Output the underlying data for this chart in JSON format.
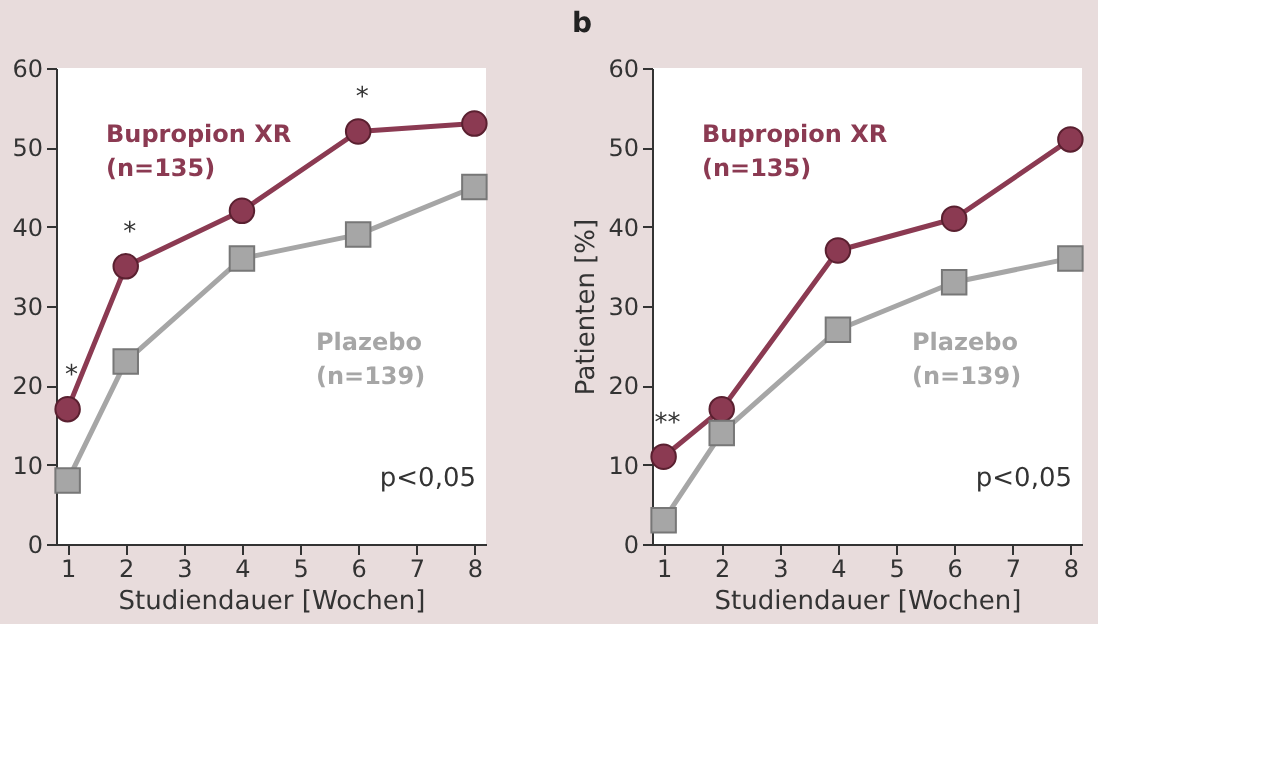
{
  "chart_data": [
    {
      "type": "line",
      "x": [
        1,
        2,
        4,
        6,
        8
      ],
      "xlabel": "Studiendauer [Wochen]",
      "xlim": [
        0.8,
        8.2
      ],
      "xticks": [
        1,
        2,
        3,
        4,
        5,
        6,
        7,
        8
      ],
      "ylim": [
        0,
        60
      ],
      "yticks": [
        0,
        10,
        20,
        30,
        40,
        50,
        60
      ],
      "grid": false,
      "legend": false,
      "series": [
        {
          "name": "Bupropion XR\n(n=135)",
          "color": "#8b3a52",
          "marker": "circle",
          "values": [
            17,
            35,
            42,
            52,
            53
          ]
        },
        {
          "name": "Plazebo\n(n=139)",
          "color": "#a6a6a6",
          "marker": "square",
          "values": [
            8,
            23,
            36,
            39,
            45
          ]
        }
      ],
      "annotations": [
        {
          "text": "*",
          "x": 1,
          "y": 17
        },
        {
          "text": "*",
          "x": 2,
          "y": 35
        },
        {
          "text": "*",
          "x": 6,
          "y": 52
        },
        "p<0,05"
      ]
    },
    {
      "type": "line",
      "title": "b",
      "x": [
        1,
        2,
        4,
        6,
        8
      ],
      "xlabel": "Studiendauer [Wochen]",
      "ylabel": "Patienten [%]",
      "xlim": [
        0.8,
        8.2
      ],
      "xticks": [
        1,
        2,
        3,
        4,
        5,
        6,
        7,
        8
      ],
      "ylim": [
        0,
        60
      ],
      "yticks": [
        0,
        10,
        20,
        30,
        40,
        50,
        60
      ],
      "grid": false,
      "legend": false,
      "series": [
        {
          "name": "Bupropion XR\n(n=135)",
          "color": "#8b3a52",
          "marker": "circle",
          "values": [
            11,
            17,
            37,
            41,
            51
          ]
        },
        {
          "name": "Plazebo\n(n=139)",
          "color": "#a6a6a6",
          "marker": "square",
          "values": [
            3,
            14,
            27,
            33,
            36
          ]
        }
      ],
      "annotations": [
        {
          "text": "**",
          "x": 1,
          "y": 11
        },
        "p<0,05"
      ]
    }
  ]
}
